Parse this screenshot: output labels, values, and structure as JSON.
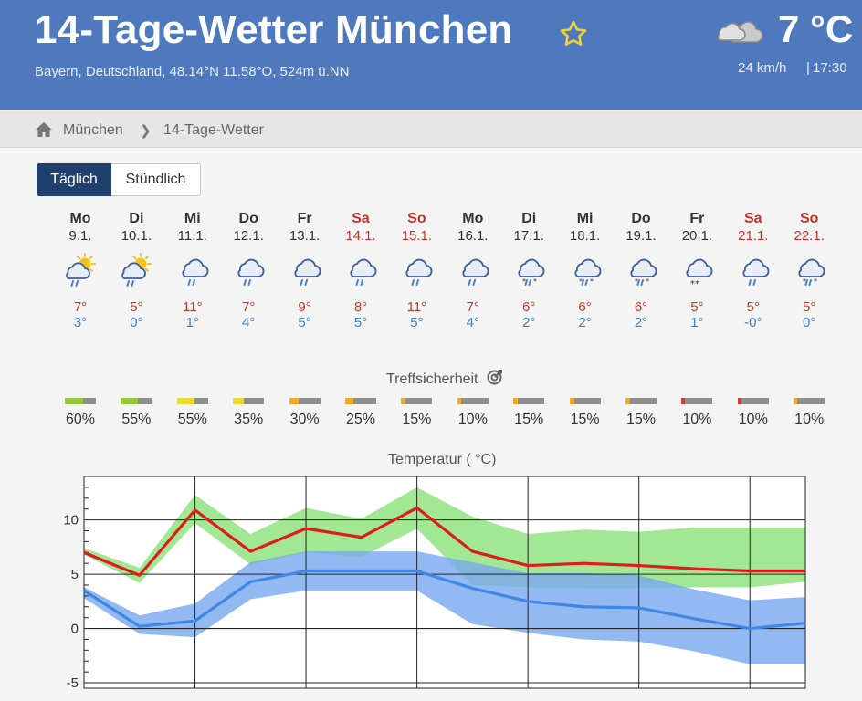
{
  "header": {
    "title": "14-Tage-Wetter München",
    "subtitle": "Bayern, Deutschland, 48.14°N 11.58°O, 524m ü.NN",
    "current_temp": "7 °C",
    "wind": "24 km/h",
    "separator": "|",
    "time": "17:30",
    "current_icon": "cloudy-icon",
    "favorite_icon": "star-icon"
  },
  "breadcrumb": {
    "items": [
      "München",
      "14-Tage-Wetter"
    ],
    "separator": "❯",
    "home_icon": "home-icon"
  },
  "tabs": [
    {
      "label": "Täglich",
      "active": true
    },
    {
      "label": "Stündlich",
      "active": false
    }
  ],
  "days": [
    {
      "name": "Mo",
      "date": "9.1.",
      "weekend": false,
      "icon": "sun-cloud-rain",
      "max": "7°",
      "min": "3°"
    },
    {
      "name": "Di",
      "date": "10.1.",
      "weekend": false,
      "icon": "sun-cloud-rain",
      "max": "5°",
      "min": "0°"
    },
    {
      "name": "Mi",
      "date": "11.1.",
      "weekend": false,
      "icon": "cloud-rain",
      "max": "11°",
      "min": "1°"
    },
    {
      "name": "Do",
      "date": "12.1.",
      "weekend": false,
      "icon": "cloud-rain",
      "max": "7°",
      "min": "4°"
    },
    {
      "name": "Fr",
      "date": "13.1.",
      "weekend": false,
      "icon": "cloud-rain",
      "max": "9°",
      "min": "5°"
    },
    {
      "name": "Sa",
      "date": "14.1.",
      "weekend": true,
      "icon": "cloud-rain",
      "max": "8°",
      "min": "5°"
    },
    {
      "name": "So",
      "date": "15.1.",
      "weekend": true,
      "icon": "cloud-rain",
      "max": "11°",
      "min": "5°"
    },
    {
      "name": "Mo",
      "date": "16.1.",
      "weekend": false,
      "icon": "cloud-rain",
      "max": "7°",
      "min": "4°"
    },
    {
      "name": "Di",
      "date": "17.1.",
      "weekend": false,
      "icon": "cloud-sleet",
      "max": "6°",
      "min": "2°"
    },
    {
      "name": "Mi",
      "date": "18.1.",
      "weekend": false,
      "icon": "cloud-sleet",
      "max": "6°",
      "min": "2°"
    },
    {
      "name": "Do",
      "date": "19.1.",
      "weekend": false,
      "icon": "cloud-sleet",
      "max": "6°",
      "min": "2°"
    },
    {
      "name": "Fr",
      "date": "20.1.",
      "weekend": false,
      "icon": "cloud-snow",
      "max": "5°",
      "min": "1°"
    },
    {
      "name": "Sa",
      "date": "21.1.",
      "weekend": true,
      "icon": "cloud-rain",
      "max": "5°",
      "min": "-0°"
    },
    {
      "name": "So",
      "date": "22.1.",
      "weekend": true,
      "icon": "cloud-sleet",
      "max": "5°",
      "min": "0°"
    }
  ],
  "confidence": {
    "title": "Treffsicherheit",
    "icon": "target-icon",
    "values": [
      {
        "label": "60%",
        "value": 0.6,
        "color": "#9ac63f"
      },
      {
        "label": "55%",
        "value": 0.55,
        "color": "#9ac63f"
      },
      {
        "label": "55%",
        "value": 0.55,
        "color": "#e8d934"
      },
      {
        "label": "35%",
        "value": 0.35,
        "color": "#e8d934"
      },
      {
        "label": "30%",
        "value": 0.3,
        "color": "#f0a92b"
      },
      {
        "label": "25%",
        "value": 0.25,
        "color": "#f0a92b"
      },
      {
        "label": "15%",
        "value": 0.15,
        "color": "#f0a92b"
      },
      {
        "label": "10%",
        "value": 0.1,
        "color": "#f0a92b"
      },
      {
        "label": "15%",
        "value": 0.15,
        "color": "#f0a92b"
      },
      {
        "label": "15%",
        "value": 0.15,
        "color": "#f0a92b"
      },
      {
        "label": "15%",
        "value": 0.15,
        "color": "#f0a92b"
      },
      {
        "label": "10%",
        "value": 0.1,
        "color": "#d93a2b"
      },
      {
        "label": "10%",
        "value": 0.1,
        "color": "#d93a2b"
      },
      {
        "label": "10%",
        "value": 0.1,
        "color": "#f0a92b"
      }
    ]
  },
  "chart_data": {
    "type": "line",
    "title": "Temperatur ( °C)",
    "ylim": [
      -5.5,
      14
    ],
    "yticks": [
      -5,
      0,
      5,
      10
    ],
    "grid": true,
    "legend": "none",
    "x": [
      "9.1.",
      "10.1.",
      "11.1.",
      "12.1.",
      "13.1.",
      "14.1.",
      "15.1.",
      "16.1.",
      "17.1.",
      "18.1.",
      "19.1.",
      "20.1.",
      "21.1.",
      "22.1."
    ],
    "series": [
      {
        "role": "max",
        "color": "#e01b1b",
        "values": [
          7,
          4.9,
          10.9,
          7.1,
          9.2,
          8.4,
          11.1,
          7.1,
          5.8,
          6.0,
          5.8,
          5.5,
          5.3,
          5.3
        ],
        "band_low": [
          6.8,
          4.2,
          9.7,
          5.9,
          7.0,
          6.6,
          9.2,
          4.0,
          3.8,
          3.7,
          3.7,
          3.8,
          3.8,
          4.3
        ],
        "band_high": [
          7.4,
          5.6,
          12.3,
          8.7,
          11.1,
          10.1,
          13.0,
          10.3,
          8.7,
          9.1,
          8.9,
          9.3,
          9.3,
          9.3
        ],
        "band_color": "#8ee27b"
      },
      {
        "role": "min",
        "color": "#3f86e6",
        "values": [
          3.5,
          0.2,
          0.7,
          4.3,
          5.3,
          5.3,
          5.3,
          3.7,
          2.5,
          2.0,
          1.9,
          0.9,
          0.0,
          0.5
        ],
        "band_low": [
          2.8,
          -0.5,
          -0.8,
          2.7,
          3.5,
          3.5,
          3.5,
          0.4,
          -0.4,
          -1.0,
          -1.2,
          -2.1,
          -3.3,
          -3.3
        ],
        "band_high": [
          3.8,
          1.2,
          2.3,
          6.1,
          7.1,
          7.1,
          7.1,
          6.1,
          5.1,
          5.1,
          4.9,
          3.6,
          2.6,
          2.9
        ],
        "band_color": "#7ba9ef"
      }
    ]
  }
}
